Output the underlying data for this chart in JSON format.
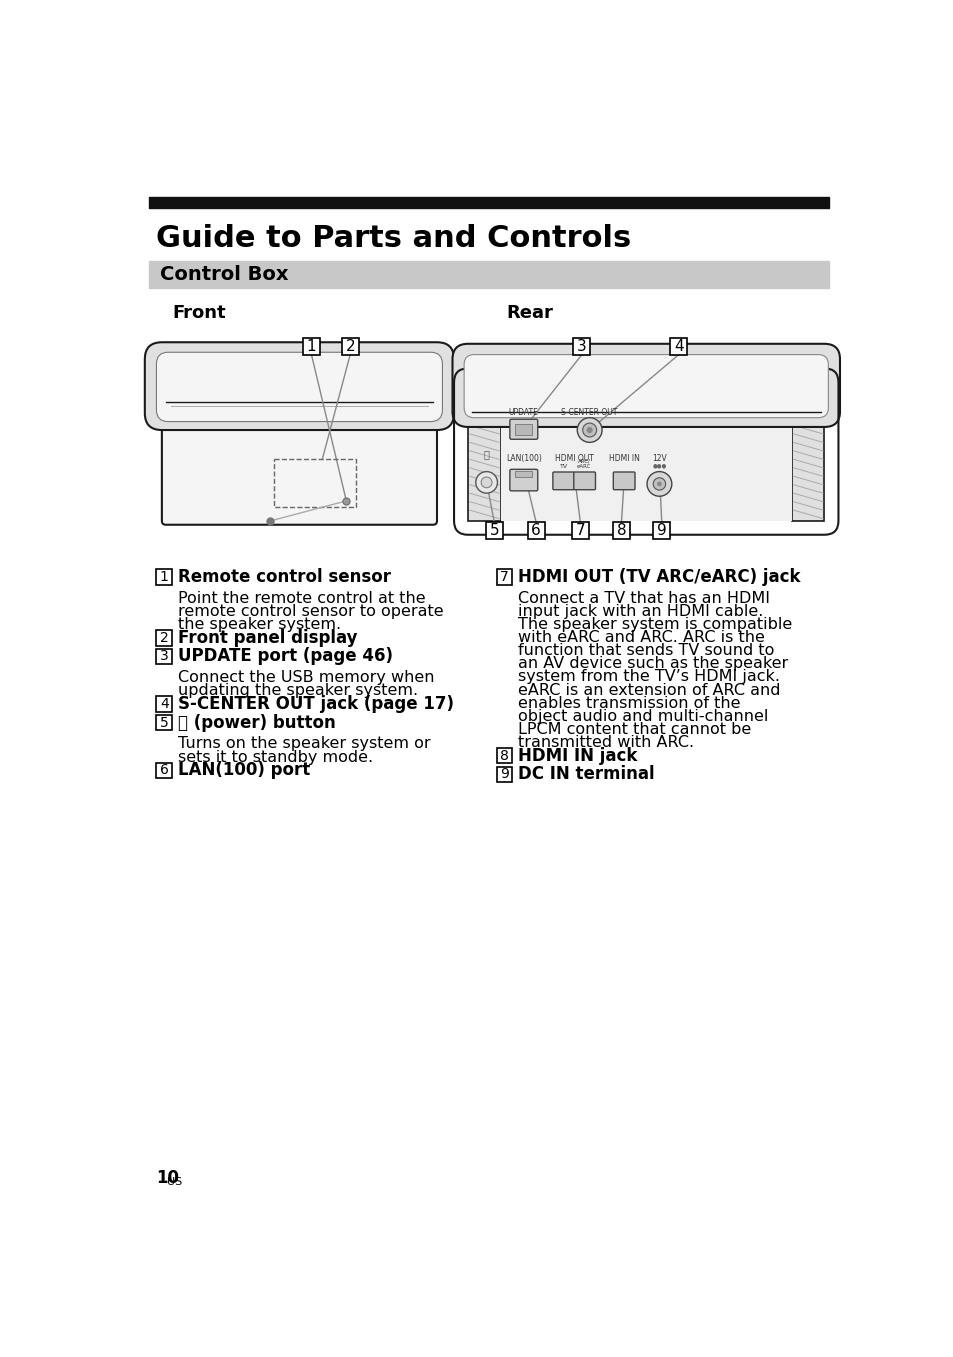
{
  "title": "Guide to Parts and Controls",
  "section": "Control Box",
  "front_label": "Front",
  "rear_label": "Rear",
  "page_number": "10",
  "items": [
    {
      "num": "1",
      "bold": "Remote control sensor",
      "text": "Point the remote control at the\nremote control sensor to operate\nthe speaker system."
    },
    {
      "num": "2",
      "bold": "Front panel display",
      "text": ""
    },
    {
      "num": "3",
      "bold": "UPDATE port (page 46)",
      "text": "Connect the USB memory when\nupdating the speaker system."
    },
    {
      "num": "4",
      "bold": "S-CENTER OUT jack (page 17)",
      "text": ""
    },
    {
      "num": "5",
      "bold": "ⓟ (power) button",
      "text": "Turns on the speaker system or\nsets it to standby mode."
    },
    {
      "num": "6",
      "bold": "LAN(100) port",
      "text": ""
    },
    {
      "num": "7",
      "bold": "HDMI OUT (TV ARC/eARC) jack",
      "text": "Connect a TV that has an HDMI\ninput jack with an HDMI cable.\nThe speaker system is compatible\nwith eARC and ARC. ARC is the\nfunction that sends TV sound to\nan AV device such as the speaker\nsystem from the TV’s HDMI jack.\neARC is an extension of ARC and\nenables transmission of the\nobject audio and multi-channel\nLPCM content that cannot be\ntransmitted with ARC."
    },
    {
      "num": "8",
      "bold": "HDMI IN jack",
      "text": ""
    },
    {
      "num": "9",
      "bold": "DC IN terminal",
      "text": ""
    }
  ],
  "bg_color": "#ffffff",
  "title_bar_color": "#111111",
  "section_bg_color": "#c8c8c8",
  "text_color": "#000000",
  "line_color": "#888888",
  "device_edge": "#1a1a1a",
  "device_face": "#f5f5f5",
  "device_lid": "#e0e0e0"
}
